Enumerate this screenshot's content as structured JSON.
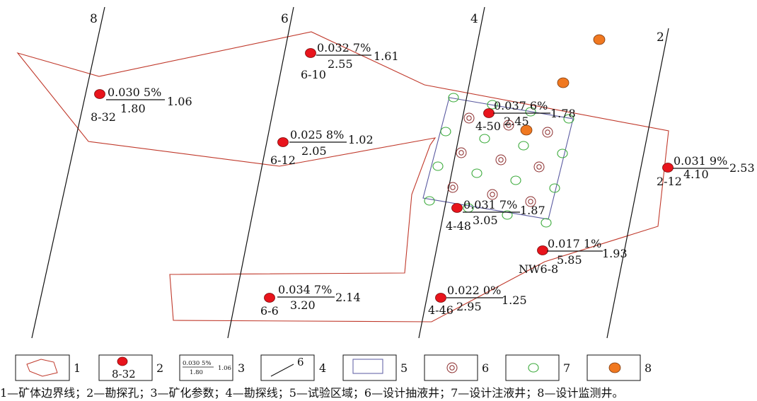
{
  "lines": [
    {
      "label": "8"
    },
    {
      "label": "6"
    },
    {
      "label": "4"
    },
    {
      "label": "2"
    }
  ],
  "holes": [
    {
      "id": "8-32",
      "grade": "0.030 5%",
      "thickness": "1.80",
      "value": "1.06"
    },
    {
      "id": "6-10",
      "grade": "0.032 7%",
      "thickness": "2.55",
      "value": "1.61"
    },
    {
      "id": "6-12",
      "grade": "0.025 8%",
      "thickness": "2.05",
      "value": "1.02"
    },
    {
      "id": "4-50",
      "grade": "0.037 6%",
      "thickness": "2.45",
      "value": "1.78"
    },
    {
      "id": "2-12",
      "grade": "0.031 9%",
      "thickness": "4.10",
      "value": "2.53"
    },
    {
      "id": "4-48",
      "grade": "0.031 7%",
      "thickness": "3.05",
      "value": "1.87"
    },
    {
      "id": "NW6-8",
      "grade": "0.017 1%",
      "thickness": "5.85",
      "value": "1.93"
    },
    {
      "id": "6-6",
      "grade": "0.034 7%",
      "thickness": "3.20",
      "value": "2.14"
    },
    {
      "id": "4-46",
      "grade": "0.022 0%",
      "thickness": "2.95",
      "value": "1.25"
    }
  ],
  "legend": [
    {
      "num": "1"
    },
    {
      "num": "2",
      "sample": "8-32"
    },
    {
      "num": "3",
      "grade": "0.030 5%",
      "thickness": "1.80",
      "value": "1.06"
    },
    {
      "num": "4",
      "sample": "6"
    },
    {
      "num": "5"
    },
    {
      "num": "6"
    },
    {
      "num": "7"
    },
    {
      "num": "8"
    }
  ],
  "caption": "1—矿体边界线；2—勘探孔；3—矿化参数；4—勘探线；5—试验区域；6—设计抽液井；7—设计注液井；8—设计监测井。",
  "colors": {
    "boundary": "#c0392b",
    "hole": "#e8141c",
    "test_area": "#5a5aa0",
    "extraction": "#8a2a2a",
    "injection": "#3aaa3a",
    "monitor": "#f07820"
  }
}
